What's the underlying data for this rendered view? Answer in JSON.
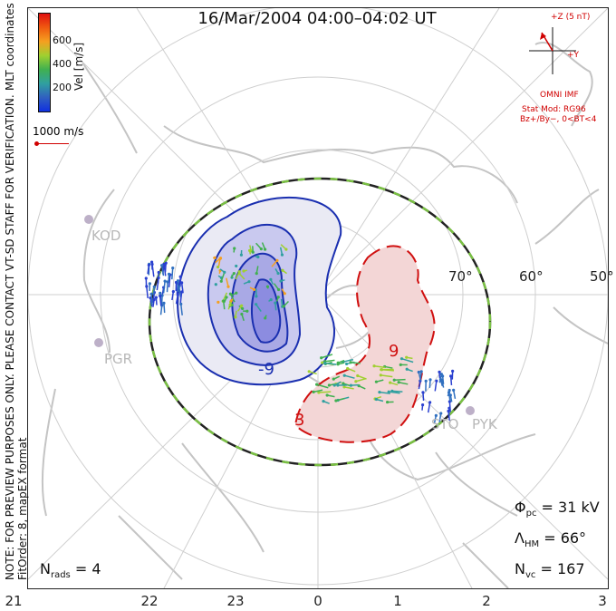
{
  "title": "16/Mar/2004 04:00–04:02 UT",
  "mlt_ticks": [
    "21",
    "22",
    "23",
    "0",
    "1",
    "2",
    "3"
  ],
  "lat_labels": [
    "70°",
    "60°",
    "50°"
  ],
  "stations": [
    "KOD",
    "PGR",
    "STO",
    "PYK"
  ],
  "contour_labels": [
    "-9",
    "3",
    "9"
  ],
  "colorbar": {
    "title": "Vel [m/s]",
    "ticks": [
      "600",
      "400",
      "200"
    ],
    "colors": [
      "#e01010",
      "#f05a10",
      "#f5a020",
      "#a0d030",
      "#40b050",
      "#30a0a0",
      "#3060c0",
      "#1030e0"
    ]
  },
  "side_text_1": "MLT coordinates",
  "side_text_2": "NOTE: FOR PREVIEW PURPOSES ONLY. PLEASE CONTACT VT-SD STAFF FOR VERIFICATION.",
  "side_text_3": "FitOrder: 8, mapEX format",
  "scale_vector": "1000 m/s",
  "imf": {
    "z_label": "+Z (5 nT)",
    "y_label": "+Y",
    "source": "OMNI IMF",
    "model_line1": "Stat Mod: RG96",
    "model_line2": "Bz+/By−, 0<BT<4"
  },
  "stats": {
    "phi_sym": "Φ",
    "phi_sub": "pc",
    "phi_val": "= 31 kV",
    "lam_sym": "Λ",
    "lam_sub": "HM",
    "lam_val": "= 66°",
    "nvc_sym": "N",
    "nvc_sub": "vc",
    "nvc_val": "= 167",
    "nrads_sym": "N",
    "nrads_sub": "rads",
    "nrads_val": "= 4"
  },
  "colors": {
    "negative_cell": "#1a2fb0",
    "positive_cell": "#d01010",
    "hmb_dash": "#7ac143",
    "grid": "#cfcfcf",
    "coast": "#c4c4c4"
  }
}
